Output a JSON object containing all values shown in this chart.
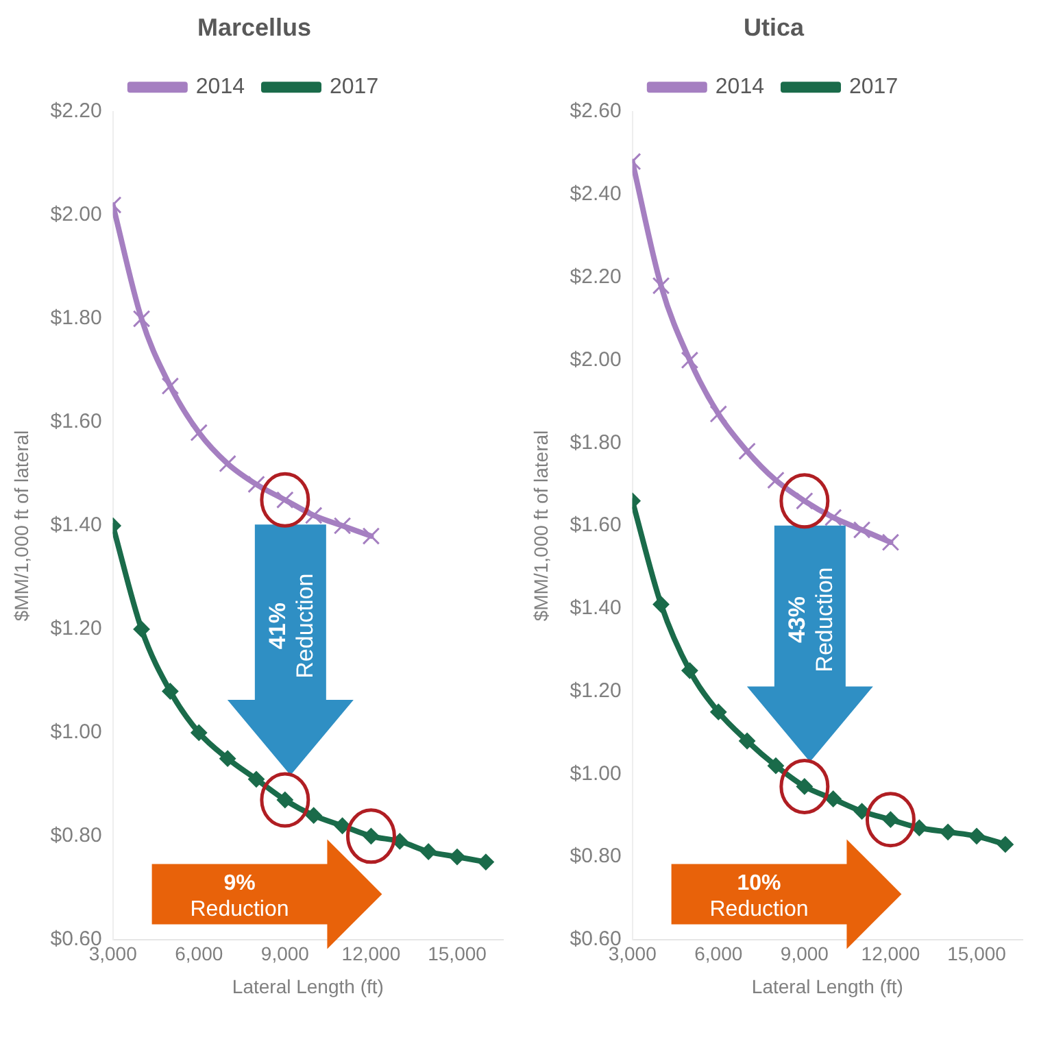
{
  "chart_data": [
    {
      "type": "line",
      "title": "Marcellus",
      "xlabel": "Lateral Length (ft)",
      "ylabel": "$MM/1,000 ft of lateral",
      "xlim": [
        3000,
        16600
      ],
      "xticks": [
        {
          "value": 3000,
          "label": "3,000"
        },
        {
          "value": 6000,
          "label": "6,000"
        },
        {
          "value": 9000,
          "label": "9,000"
        },
        {
          "value": 12000,
          "label": "12,000"
        },
        {
          "value": 15000,
          "label": "15,000"
        }
      ],
      "ylim": [
        0.6,
        2.2
      ],
      "yticks": [
        {
          "value": 0.6,
          "label": "$0.60"
        },
        {
          "value": 0.8,
          "label": "$0.80"
        },
        {
          "value": 1.0,
          "label": "$1.00"
        },
        {
          "value": 1.2,
          "label": "$1.20"
        },
        {
          "value": 1.4,
          "label": "$1.40"
        },
        {
          "value": 1.6,
          "label": "$1.60"
        },
        {
          "value": 1.8,
          "label": "$1.80"
        },
        {
          "value": 2.0,
          "label": "$2.00"
        },
        {
          "value": 2.2,
          "label": "$2.20"
        }
      ],
      "grid": false,
      "legend": "top",
      "series": [
        {
          "name": "2014",
          "color": "#a57fc1",
          "marker": "cross",
          "x": [
            3000,
            4000,
            5000,
            6000,
            7000,
            8000,
            9000,
            10000,
            11000,
            12000
          ],
          "values": [
            2.02,
            1.8,
            1.67,
            1.58,
            1.52,
            1.48,
            1.45,
            1.42,
            1.4,
            1.38
          ]
        },
        {
          "name": "2017",
          "color": "#1a6b4a",
          "marker": "diamond",
          "x": [
            3000,
            4000,
            5000,
            6000,
            7000,
            8000,
            9000,
            10000,
            11000,
            12000,
            13000,
            14000,
            15000,
            16000
          ],
          "values": [
            1.4,
            1.2,
            1.08,
            1.0,
            0.95,
            0.91,
            0.87,
            0.84,
            0.82,
            0.8,
            0.79,
            0.77,
            0.76,
            0.75
          ]
        }
      ],
      "annotations": [
        "41% Reduction",
        "9% Reduction"
      ]
    },
    {
      "type": "line",
      "title": "Utica",
      "xlabel": "Lateral Length (ft)",
      "ylabel": "$MM/1,000 ft of lateral",
      "xlim": [
        3000,
        16600
      ],
      "xticks": [
        {
          "value": 3000,
          "label": "3,000"
        },
        {
          "value": 6000,
          "label": "6,000"
        },
        {
          "value": 9000,
          "label": "9,000"
        },
        {
          "value": 12000,
          "label": "12,000"
        },
        {
          "value": 15000,
          "label": "15,000"
        }
      ],
      "ylim": [
        0.6,
        2.6
      ],
      "yticks": [
        {
          "value": 0.6,
          "label": "$0.60"
        },
        {
          "value": 0.8,
          "label": "$0.80"
        },
        {
          "value": 1.0,
          "label": "$1.00"
        },
        {
          "value": 1.2,
          "label": "$1.20"
        },
        {
          "value": 1.4,
          "label": "$1.40"
        },
        {
          "value": 1.6,
          "label": "$1.60"
        },
        {
          "value": 1.8,
          "label": "$1.80"
        },
        {
          "value": 2.0,
          "label": "$2.00"
        },
        {
          "value": 2.2,
          "label": "$2.20"
        },
        {
          "value": 2.4,
          "label": "$2.40"
        },
        {
          "value": 2.6,
          "label": "$2.60"
        }
      ],
      "grid": false,
      "legend": "top",
      "series": [
        {
          "name": "2014",
          "color": "#a57fc1",
          "marker": "cross",
          "x": [
            3000,
            4000,
            5000,
            6000,
            7000,
            8000,
            9000,
            10000,
            11000,
            12000
          ],
          "values": [
            2.48,
            2.18,
            2.0,
            1.87,
            1.78,
            1.71,
            1.66,
            1.62,
            1.59,
            1.56
          ]
        },
        {
          "name": "2017",
          "color": "#1a6b4a",
          "marker": "diamond",
          "x": [
            3000,
            4000,
            5000,
            6000,
            7000,
            8000,
            9000,
            10000,
            11000,
            12000,
            13000,
            14000,
            15000,
            16000
          ],
          "values": [
            1.66,
            1.41,
            1.25,
            1.15,
            1.08,
            1.02,
            0.97,
            0.94,
            0.91,
            0.89,
            0.87,
            0.86,
            0.85,
            0.83
          ]
        }
      ],
      "annotations": [
        "43% Reduction",
        "10% Reduction"
      ]
    }
  ]
}
